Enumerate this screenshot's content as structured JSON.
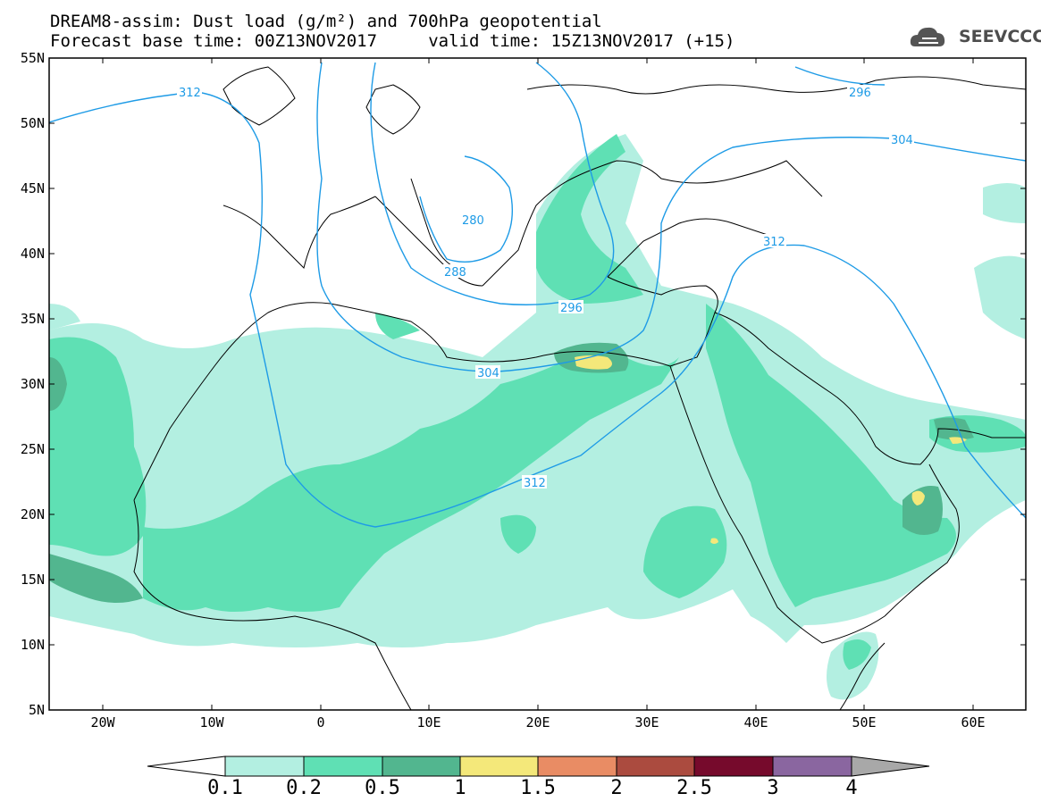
{
  "header": {
    "title_line1": "DREAM8-assim: Dust load (g/m²) and 700hPa geopotential",
    "title_line2": "Forecast base time: 00Z13NOV2017     valid time: 15Z13NOV2017 (+15)"
  },
  "logo": {
    "text": "SEEVCCC",
    "icon": "cloud-logo-icon"
  },
  "axes": {
    "lat_labels": [
      "55N",
      "50N",
      "45N",
      "40N",
      "35N",
      "30N",
      "25N",
      "20N",
      "15N",
      "10N",
      "5N"
    ],
    "lon_labels": [
      "20W",
      "10W",
      "0",
      "10E",
      "20E",
      "30E",
      "40E",
      "50E",
      "60E"
    ]
  },
  "contours": {
    "labels": [
      "312",
      "296",
      "304",
      "280",
      "288",
      "296",
      "304",
      "312",
      "312"
    ]
  },
  "colorbar": {
    "labels": [
      "0.1",
      "0.2",
      "0.5",
      "1",
      "1.5",
      "2",
      "2.5",
      "3",
      "4"
    ],
    "colors": [
      "#b3efe1",
      "#5fe0b4",
      "#52b68f",
      "#f4e87a",
      "#e98c64",
      "#ab4b3f",
      "#760a2c",
      "#8a66a0"
    ],
    "under_color": "#ffffff",
    "over_color": "#a8a8a8"
  },
  "dust_colors": {
    "light": "#b3efe1",
    "medium": "#5fe0b4",
    "dark": "#52b68f",
    "yellow": "#f4e87a"
  },
  "contour_color": "#1e9be6"
}
